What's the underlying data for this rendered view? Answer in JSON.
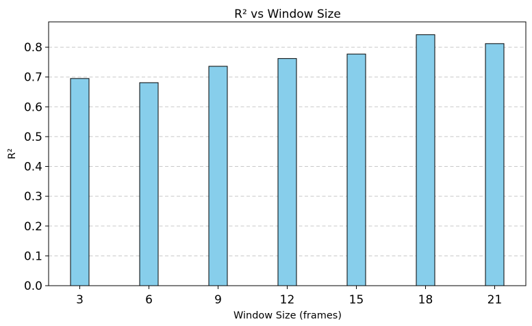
{
  "chart_data": {
    "type": "bar",
    "title": "R² vs Window Size",
    "xlabel": "Window Size (frames)",
    "ylabel": "R²",
    "categories": [
      "3",
      "6",
      "9",
      "12",
      "15",
      "18",
      "21"
    ],
    "values": [
      0.695,
      0.681,
      0.736,
      0.762,
      0.777,
      0.842,
      0.812
    ],
    "ylim": [
      0,
      0.885
    ],
    "yticks": [
      "0.0",
      "0.1",
      "0.2",
      "0.3",
      "0.4",
      "0.5",
      "0.6",
      "0.7",
      "0.8"
    ],
    "grid": "y-dashed",
    "bar_color": "#87ceeb",
    "bar_edge_color": "#000000",
    "grid_color": "#c8c8c8"
  }
}
